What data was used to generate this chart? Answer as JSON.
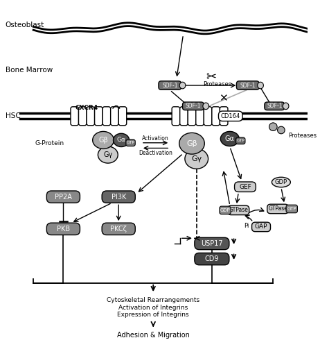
{
  "bg_color": "#ffffff",
  "osteoblast_label": "Osteoblast",
  "bone_marrow_label": "Bone Marrow",
  "hsc_label": "HSC",
  "gprotein_label": "G-Protein",
  "cxcr4_label": "CXCR4",
  "activation_label": "Activation",
  "deactivation_label": "Deactivation",
  "bottom_text": [
    "Cytoskeletal Rearrangements",
    "Activation of Integrins",
    "Expression of Integrins"
  ],
  "adhesion_text": "Adhesion & Migration",
  "proteases_label": "Proteases",
  "cd164_label": "CD164",
  "sdf1_label": "SDF-1"
}
